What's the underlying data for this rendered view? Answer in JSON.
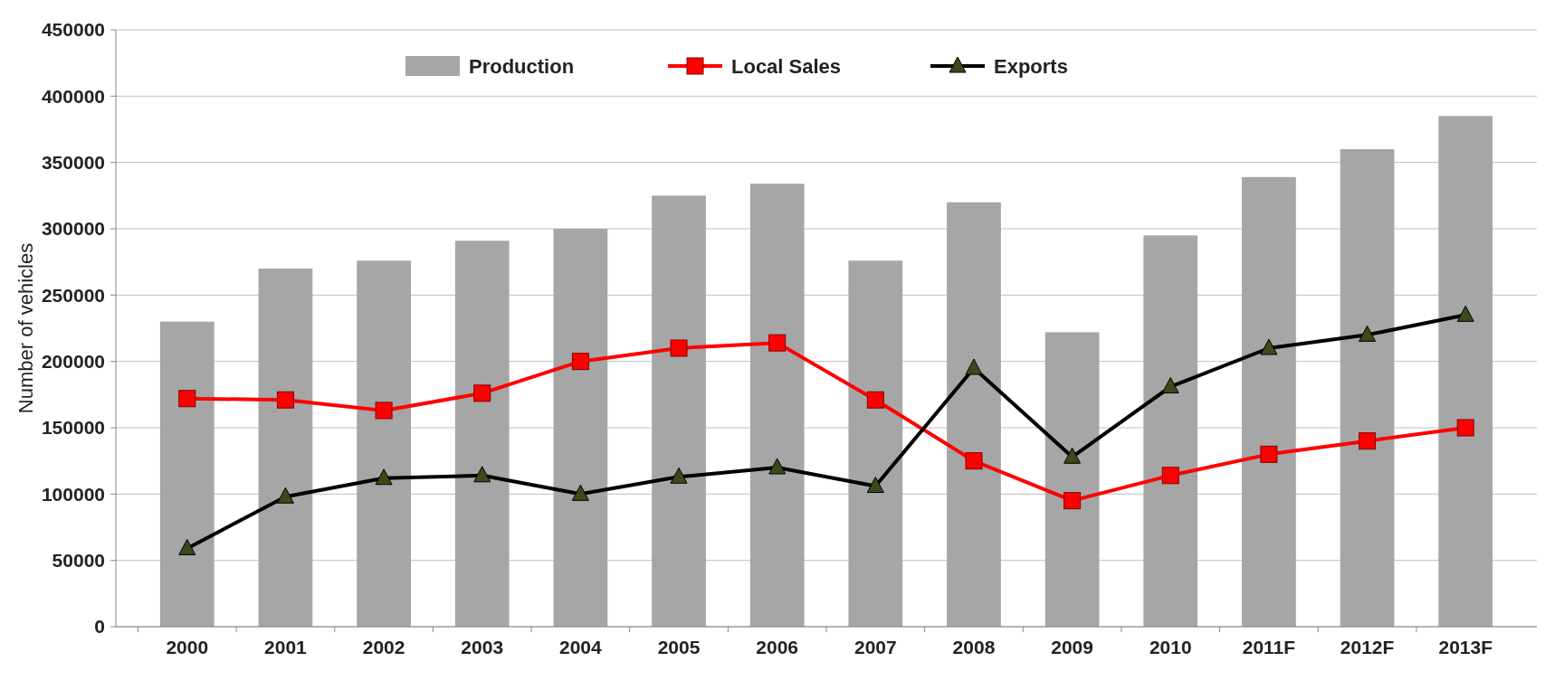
{
  "chart_data": {
    "type": "bar",
    "ylabel": "Number of vehicles",
    "categories": [
      "2000",
      "2001",
      "2002",
      "2003",
      "2004",
      "2005",
      "2006",
      "2007",
      "2008",
      "2009",
      "2010",
      "2011F",
      "2012F",
      "2013F"
    ],
    "series": [
      {
        "name": "Production",
        "color": "#a6a6a6",
        "values": [
          230000,
          270000,
          276000,
          291000,
          300000,
          325000,
          334000,
          276000,
          320000,
          222000,
          295000,
          339000,
          360000,
          385000
        ]
      },
      {
        "name": "Local Sales",
        "type": "line",
        "color": "#ff0000",
        "marker": "square",
        "values": [
          172000,
          171000,
          163000,
          176000,
          200000,
          210000,
          214000,
          171000,
          125000,
          95000,
          114000,
          130000,
          140000,
          150000
        ]
      },
      {
        "name": "Exports",
        "type": "line",
        "color": "#000000",
        "marker": "triangle",
        "values": [
          59000,
          98000,
          112000,
          114000,
          100000,
          113000,
          120000,
          106000,
          195000,
          128000,
          181000,
          210000,
          220000,
          235000
        ]
      }
    ],
    "ylim": [
      0,
      450000
    ],
    "yticks": [
      0,
      50000,
      100000,
      150000,
      200000,
      250000,
      300000,
      350000,
      400000,
      450000
    ],
    "grid": "y",
    "legend": "top"
  }
}
